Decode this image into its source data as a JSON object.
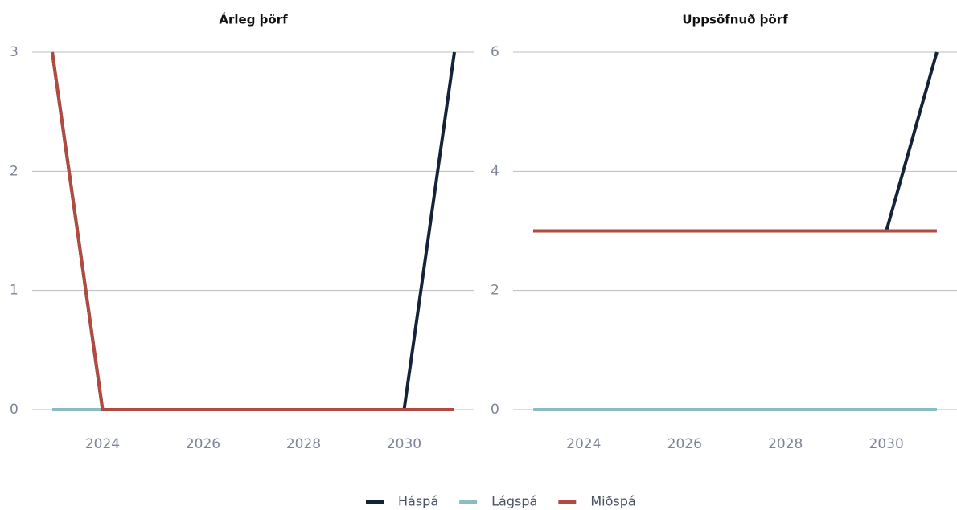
{
  "chart_data": [
    {
      "type": "line",
      "title": "Árleg þörf",
      "x": [
        2023,
        2024,
        2025,
        2026,
        2027,
        2028,
        2029,
        2030,
        2031
      ],
      "series": [
        {
          "name": "Háspá",
          "color": "#15233a",
          "values": [
            3,
            0,
            0,
            0,
            0,
            0,
            0,
            0,
            3
          ]
        },
        {
          "name": "Lágspá",
          "color": "#8bbcc4",
          "values": [
            0,
            0,
            0,
            0,
            0,
            0,
            0,
            0,
            0
          ]
        },
        {
          "name": "Miðspá",
          "color": "#b14a3f",
          "values": [
            3,
            0,
            0,
            0,
            0,
            0,
            0,
            0,
            0
          ]
        }
      ],
      "xlim": [
        2022.6,
        2031.4
      ],
      "xticks": [
        2024,
        2026,
        2028,
        2030
      ],
      "ylim": [
        0,
        3
      ],
      "yticks": [
        0,
        1,
        2,
        3
      ],
      "grid": true
    },
    {
      "type": "line",
      "title": "Uppsöfnuð þörf",
      "x": [
        2023,
        2024,
        2025,
        2026,
        2027,
        2028,
        2029,
        2030,
        2031
      ],
      "series": [
        {
          "color": "#15233a",
          "values": [
            3,
            3,
            3,
            3,
            3,
            3,
            3,
            3,
            6
          ]
        },
        {
          "color": "#8bbcc4",
          "values": [
            0,
            0,
            0,
            0,
            0,
            0,
            0,
            0,
            0
          ]
        },
        {
          "color": "#b14a3f",
          "values": [
            3,
            3,
            3,
            3,
            3,
            3,
            3,
            3,
            3
          ]
        }
      ],
      "xlim": [
        2022.6,
        2031.4
      ],
      "xticks": [
        2024,
        2026,
        2028,
        2030
      ],
      "ylim": [
        0,
        6
      ],
      "yticks": [
        0,
        2,
        4,
        6
      ],
      "grid": true
    }
  ]
}
